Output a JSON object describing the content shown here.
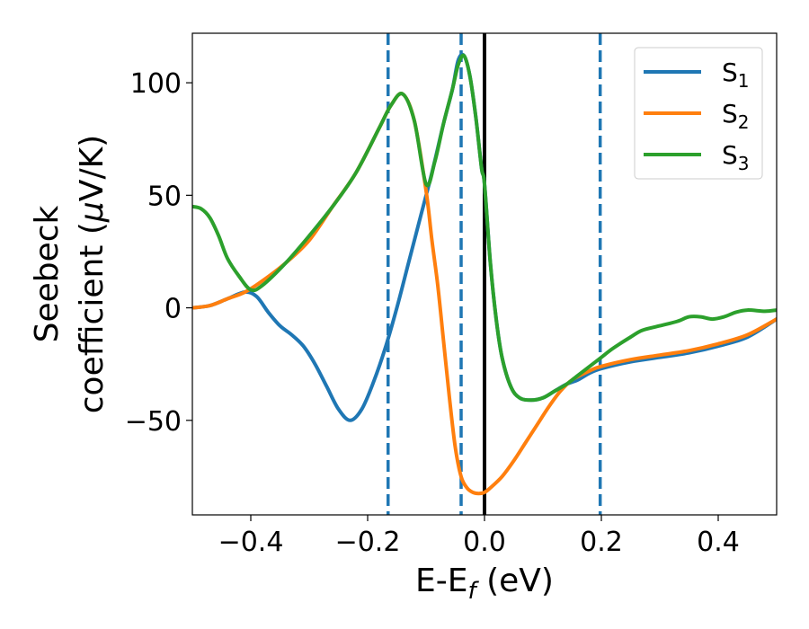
{
  "chart_data": {
    "type": "line",
    "xlabel": "E-E",
    "xlabel_sub": "f",
    "xlabel_unit": " (eV)",
    "ylabel_line1": "Seebeck",
    "ylabel_line2": "coefficient  (",
    "ylabel_mu": "μ",
    "ylabel_unit": "V/K)",
    "xlim": [
      -0.5,
      0.5
    ],
    "ylim": [
      -92,
      122
    ],
    "xticks": [
      -0.4,
      -0.2,
      0.0,
      0.2,
      0.4
    ],
    "xtick_labels": [
      "−0.4",
      "−0.2",
      "0.0",
      "0.2",
      "0.4"
    ],
    "yticks": [
      -50,
      0,
      50,
      100
    ],
    "ytick_labels": [
      "−50",
      "0",
      "50",
      "100"
    ],
    "legend_position": "upper-right",
    "grid": false,
    "vertical_lines": [
      {
        "x": -0.165,
        "style": "dashed",
        "color": "#1f77b4"
      },
      {
        "x": -0.04,
        "style": "dashed",
        "color": "#1f77b4"
      },
      {
        "x": 0.0,
        "style": "solid",
        "color": "#000000"
      },
      {
        "x": 0.198,
        "style": "dashed",
        "color": "#1f77b4"
      }
    ],
    "series": [
      {
        "name": "S",
        "sub": "1",
        "color": "#1f77b4",
        "points": [
          [
            -0.5,
            0
          ],
          [
            -0.47,
            1
          ],
          [
            -0.44,
            4
          ],
          [
            -0.41,
            7
          ],
          [
            -0.39,
            5
          ],
          [
            -0.37,
            -2
          ],
          [
            -0.35,
            -8
          ],
          [
            -0.33,
            -12
          ],
          [
            -0.31,
            -17
          ],
          [
            -0.29,
            -25
          ],
          [
            -0.27,
            -35
          ],
          [
            -0.25,
            -45
          ],
          [
            -0.23,
            -50
          ],
          [
            -0.21,
            -45
          ],
          [
            -0.19,
            -33
          ],
          [
            -0.17,
            -18
          ],
          [
            -0.15,
            0
          ],
          [
            -0.13,
            20
          ],
          [
            -0.11,
            40
          ],
          [
            -0.09,
            60
          ],
          [
            -0.07,
            82
          ],
          [
            -0.055,
            97
          ],
          [
            -0.045,
            110
          ],
          [
            -0.035,
            112
          ],
          [
            -0.025,
            103
          ],
          [
            -0.015,
            85
          ],
          [
            -0.005,
            62
          ],
          [
            0.0,
            55
          ],
          [
            0.01,
            20
          ],
          [
            0.02,
            -5
          ],
          [
            0.03,
            -22
          ],
          [
            0.045,
            -35
          ],
          [
            0.06,
            -40
          ],
          [
            0.08,
            -41
          ],
          [
            0.1,
            -40
          ],
          [
            0.12,
            -37
          ],
          [
            0.14,
            -34
          ],
          [
            0.16,
            -32
          ],
          [
            0.18,
            -29
          ],
          [
            0.2,
            -27
          ],
          [
            0.25,
            -24
          ],
          [
            0.3,
            -22
          ],
          [
            0.35,
            -20
          ],
          [
            0.4,
            -17
          ],
          [
            0.45,
            -13
          ],
          [
            0.5,
            -5
          ]
        ]
      },
      {
        "name": "S",
        "sub": "2",
        "color": "#ff7f0e",
        "points": [
          [
            -0.5,
            0
          ],
          [
            -0.47,
            1
          ],
          [
            -0.44,
            4
          ],
          [
            -0.41,
            7
          ],
          [
            -0.38,
            12
          ],
          [
            -0.34,
            20
          ],
          [
            -0.3,
            30
          ],
          [
            -0.26,
            45
          ],
          [
            -0.22,
            60
          ],
          [
            -0.18,
            80
          ],
          [
            -0.16,
            90
          ],
          [
            -0.14,
            95
          ],
          [
            -0.12,
            83
          ],
          [
            -0.1,
            52
          ],
          [
            -0.09,
            30
          ],
          [
            -0.08,
            10
          ],
          [
            -0.07,
            -15
          ],
          [
            -0.06,
            -40
          ],
          [
            -0.05,
            -62
          ],
          [
            -0.04,
            -75
          ],
          [
            -0.03,
            -80
          ],
          [
            -0.02,
            -82
          ],
          [
            -0.01,
            -82.5
          ],
          [
            0.0,
            -82
          ],
          [
            0.01,
            -80
          ],
          [
            0.03,
            -75
          ],
          [
            0.05,
            -68
          ],
          [
            0.07,
            -60
          ],
          [
            0.09,
            -52
          ],
          [
            0.11,
            -44
          ],
          [
            0.13,
            -37
          ],
          [
            0.15,
            -32
          ],
          [
            0.18,
            -28
          ],
          [
            0.2,
            -26
          ],
          [
            0.25,
            -23
          ],
          [
            0.3,
            -21
          ],
          [
            0.35,
            -19
          ],
          [
            0.4,
            -16
          ],
          [
            0.45,
            -12
          ],
          [
            0.5,
            -5
          ]
        ]
      },
      {
        "name": "S",
        "sub": "3",
        "color": "#2ca02c",
        "points": [
          [
            -0.5,
            45
          ],
          [
            -0.485,
            44
          ],
          [
            -0.47,
            40
          ],
          [
            -0.455,
            32
          ],
          [
            -0.44,
            22
          ],
          [
            -0.42,
            14
          ],
          [
            -0.4,
            8
          ],
          [
            -0.38,
            10
          ],
          [
            -0.34,
            20
          ],
          [
            -0.3,
            32
          ],
          [
            -0.26,
            45
          ],
          [
            -0.22,
            60
          ],
          [
            -0.18,
            80
          ],
          [
            -0.16,
            90
          ],
          [
            -0.14,
            95
          ],
          [
            -0.12,
            83
          ],
          [
            -0.1,
            55
          ],
          [
            -0.085,
            65
          ],
          [
            -0.07,
            82
          ],
          [
            -0.055,
            97
          ],
          [
            -0.045,
            108
          ],
          [
            -0.035,
            112
          ],
          [
            -0.025,
            103
          ],
          [
            -0.015,
            85
          ],
          [
            -0.005,
            62
          ],
          [
            0.0,
            55
          ],
          [
            0.01,
            20
          ],
          [
            0.02,
            -5
          ],
          [
            0.03,
            -22
          ],
          [
            0.045,
            -35
          ],
          [
            0.06,
            -40
          ],
          [
            0.08,
            -41
          ],
          [
            0.1,
            -40
          ],
          [
            0.12,
            -37
          ],
          [
            0.14,
            -34
          ],
          [
            0.16,
            -30
          ],
          [
            0.18,
            -26
          ],
          [
            0.2,
            -22
          ],
          [
            0.22,
            -18
          ],
          [
            0.25,
            -13
          ],
          [
            0.27,
            -10
          ],
          [
            0.3,
            -8
          ],
          [
            0.33,
            -6
          ],
          [
            0.35,
            -4
          ],
          [
            0.37,
            -4
          ],
          [
            0.39,
            -5
          ],
          [
            0.41,
            -4
          ],
          [
            0.43,
            -2
          ],
          [
            0.45,
            -1
          ],
          [
            0.48,
            -1.5
          ],
          [
            0.5,
            -1
          ]
        ]
      }
    ]
  }
}
